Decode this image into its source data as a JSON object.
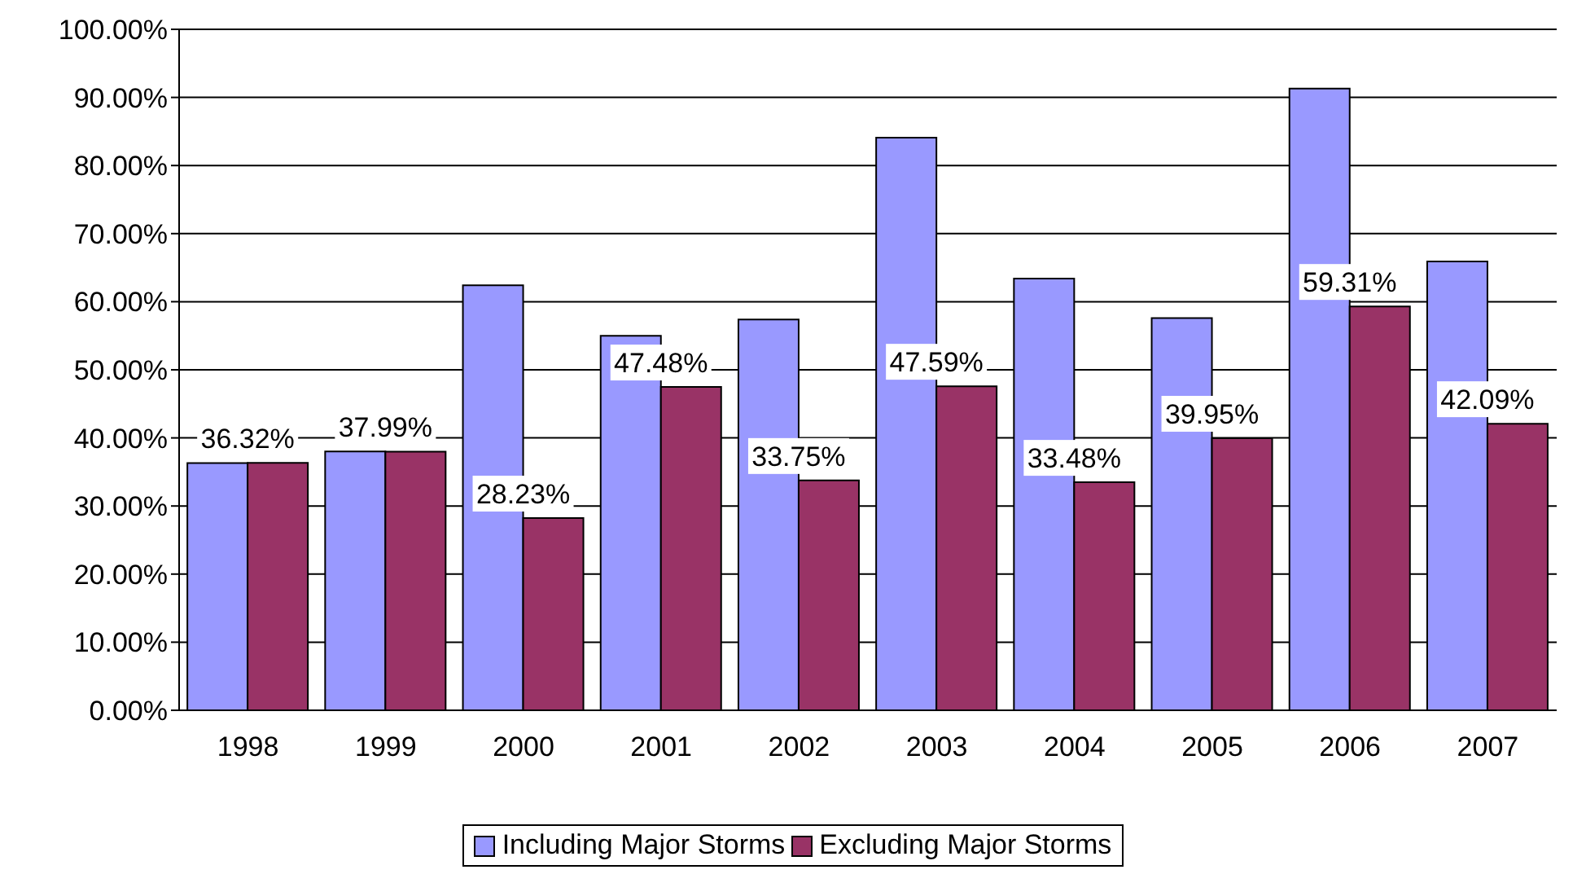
{
  "chart_data": {
    "type": "bar",
    "categories": [
      "1998",
      "1999",
      "2000",
      "2001",
      "2002",
      "2003",
      "2004",
      "2005",
      "2006",
      "2007"
    ],
    "series": [
      {
        "name": "Including Major Storms",
        "color": "#9999ff",
        "values": [
          36.3,
          38.0,
          62.4,
          55.0,
          57.4,
          84.1,
          63.4,
          57.6,
          91.3,
          65.9
        ]
      },
      {
        "name": "Excluding Major Storms",
        "color": "#993366",
        "values": [
          36.32,
          37.99,
          28.23,
          47.48,
          33.75,
          47.59,
          33.48,
          39.95,
          59.31,
          42.09
        ],
        "value_labels": [
          "36.32%",
          "37.99%",
          "28.23%",
          "47.48%",
          "33.75%",
          "47.59%",
          "33.48%",
          "39.95%",
          "59.31%",
          "42.09%"
        ]
      }
    ],
    "ylim": [
      0,
      100
    ],
    "yticks": [
      {
        "value": 0,
        "label": "0.00%"
      },
      {
        "value": 10,
        "label": "10.00%"
      },
      {
        "value": 20,
        "label": "20.00%"
      },
      {
        "value": 30,
        "label": "30.00%"
      },
      {
        "value": 40,
        "label": "40.00%"
      },
      {
        "value": 50,
        "label": "50.00%"
      },
      {
        "value": 60,
        "label": "60.00%"
      },
      {
        "value": 70,
        "label": "70.00%"
      },
      {
        "value": 80,
        "label": "80.00%"
      },
      {
        "value": 90,
        "label": "90.00%"
      },
      {
        "value": 100,
        "label": "100.00%"
      }
    ],
    "grid": "y",
    "legend": "bottom"
  }
}
